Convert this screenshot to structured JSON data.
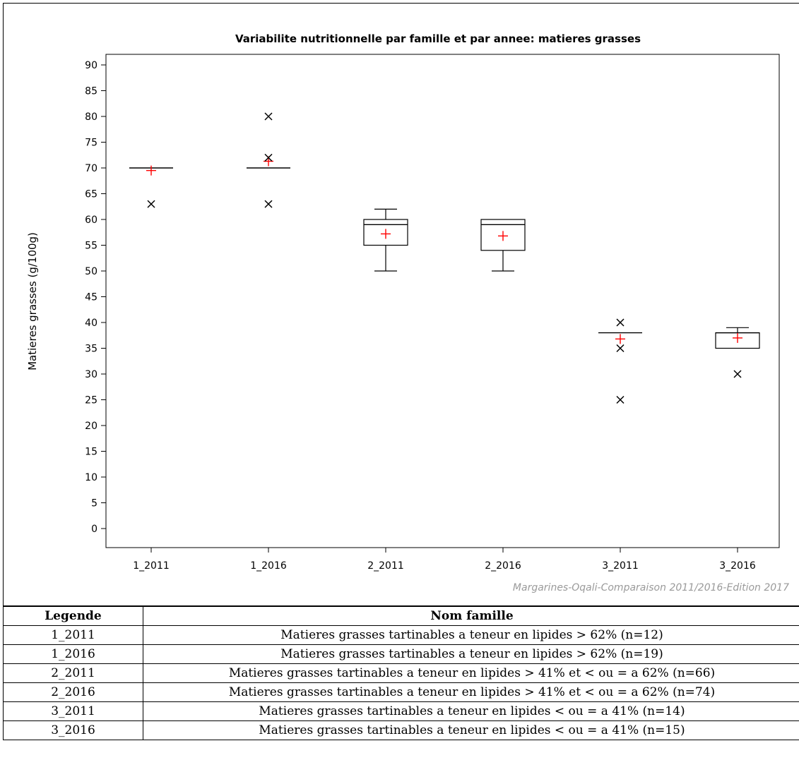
{
  "chart_data": {
    "type": "box",
    "title": "Variabilite nutritionnelle par famille et par annee: matieres grasses",
    "ylabel": "Matieres grasses (g/100g)",
    "xlabel": "",
    "ylim": [
      0,
      90
    ],
    "ytick_step": 5,
    "credit": "Margarines-Oqali-Comparaison 2011/2016-Edition 2017",
    "categories": [
      "1_2011",
      "1_2016",
      "2_2011",
      "2_2016",
      "3_2011",
      "3_2016"
    ],
    "boxes": [
      {
        "category": "1_2011",
        "min": 70,
        "q1": 70,
        "median": 70,
        "q3": 70,
        "max": 70,
        "mean": 69.5,
        "outliers": [
          63
        ]
      },
      {
        "category": "1_2016",
        "min": 70,
        "q1": 70,
        "median": 70,
        "q3": 70,
        "max": 70,
        "mean": 71.3,
        "outliers": [
          80,
          72,
          63
        ]
      },
      {
        "category": "2_2011",
        "min": 50,
        "q1": 55,
        "median": 59,
        "q3": 60,
        "max": 62,
        "mean": 57.2,
        "outliers": []
      },
      {
        "category": "2_2016",
        "min": 50,
        "q1": 54,
        "median": 59,
        "q3": 60,
        "max": 60,
        "mean": 56.8,
        "outliers": []
      },
      {
        "category": "3_2011",
        "min": 38,
        "q1": 38,
        "median": 38,
        "q3": 38,
        "max": 38,
        "mean": 36.8,
        "outliers": [
          40,
          35,
          25
        ]
      },
      {
        "category": "3_2016",
        "min": 35,
        "q1": 35,
        "median": 38,
        "q3": 38,
        "max": 39,
        "mean": 37.0,
        "outliers": [
          30
        ]
      }
    ],
    "colors": {
      "box": "#000000",
      "mean_marker": "#ff0000",
      "outlier": "#000000",
      "credit": "#9a9a9a"
    }
  },
  "legend_table": {
    "headers": [
      "Legende",
      "Nom famille"
    ],
    "rows": [
      [
        "1_2011",
        "Matieres grasses tartinables a teneur en lipides > 62% (n=12)"
      ],
      [
        "1_2016",
        "Matieres grasses tartinables a teneur en lipides > 62% (n=19)"
      ],
      [
        "2_2011",
        "Matieres grasses tartinables a teneur en lipides > 41% et < ou = a 62% (n=66)"
      ],
      [
        "2_2016",
        "Matieres grasses tartinables a teneur en lipides > 41% et < ou = a 62% (n=74)"
      ],
      [
        "3_2011",
        "Matieres grasses tartinables a teneur en lipides < ou = a 41% (n=14)"
      ],
      [
        "3_2016",
        "Matieres grasses tartinables a teneur en lipides < ou = a 41% (n=15)"
      ]
    ]
  }
}
